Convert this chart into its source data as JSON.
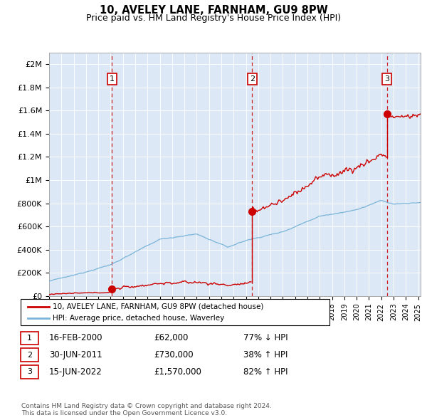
{
  "title": "10, AVELEY LANE, FARNHAM, GU9 8PW",
  "subtitle": "Price paid vs. HM Land Registry's House Price Index (HPI)",
  "ytick_values": [
    0,
    200000,
    400000,
    600000,
    800000,
    1000000,
    1200000,
    1400000,
    1600000,
    1800000,
    2000000
  ],
  "ylim": [
    0,
    2100000
  ],
  "xlim_start": 1995.4,
  "xlim_end": 2025.2,
  "sale_dates": [
    2000.12,
    2011.5,
    2022.46
  ],
  "sale_prices": [
    62000,
    730000,
    1570000
  ],
  "sale_labels": [
    "1",
    "2",
    "3"
  ],
  "hpi_color": "#7ab4d8",
  "price_color": "#cc0000",
  "dashed_color": "#cc0000",
  "plot_bg": "#dce8f5",
  "legend_label_red": "10, AVELEY LANE, FARNHAM, GU9 8PW (detached house)",
  "legend_label_blue": "HPI: Average price, detached house, Waverley",
  "table_rows": [
    [
      "1",
      "16-FEB-2000",
      "£62,000",
      "77% ↓ HPI"
    ],
    [
      "2",
      "30-JUN-2011",
      "£730,000",
      "38% ↑ HPI"
    ],
    [
      "3",
      "15-JUN-2022",
      "£1,570,000",
      "82% ↑ HPI"
    ]
  ],
  "footnote": "Contains HM Land Registry data © Crown copyright and database right 2024.\nThis data is licensed under the Open Government Licence v3.0.",
  "title_fontsize": 10.5,
  "subtitle_fontsize": 9
}
